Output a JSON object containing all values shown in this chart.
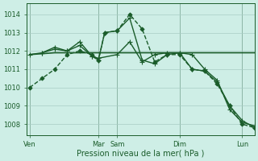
{
  "bg_color": "#ceeee6",
  "grid_color": "#a8ccc4",
  "line_color": "#1a5c2a",
  "xlabel": "Pression niveau de la mer( hPa )",
  "ylim": [
    1007.4,
    1014.6
  ],
  "yticks": [
    1008,
    1009,
    1010,
    1011,
    1012,
    1013,
    1014
  ],
  "xtick_labels": [
    "Ven",
    "Mar",
    "Sam",
    "Dim",
    "Lun"
  ],
  "xtick_pos": [
    0,
    11,
    14,
    24,
    34
  ],
  "vlines_dark": [
    0,
    11,
    14,
    24,
    34
  ],
  "xlim": [
    -0.5,
    36
  ],
  "lines": [
    {
      "x": [
        0,
        2,
        4,
        6,
        8,
        10,
        11,
        12,
        14,
        16,
        18,
        20,
        22,
        24,
        26,
        28,
        30,
        32,
        34,
        36
      ],
      "y": [
        1010.0,
        1010.5,
        1011.0,
        1011.8,
        1012.0,
        1011.8,
        1011.5,
        1013.0,
        1013.1,
        1014.0,
        1013.2,
        1011.4,
        1011.8,
        1011.8,
        1011.0,
        1010.9,
        1010.2,
        1009.0,
        1008.0,
        1007.8
      ],
      "marker": "D",
      "markersize": 2.5,
      "linestyle": "--",
      "linewidth": 1.0
    },
    {
      "x": [
        0,
        4,
        8,
        11,
        14,
        18,
        22,
        24,
        28,
        34,
        36
      ],
      "y": [
        1011.8,
        1011.9,
        1011.9,
        1011.9,
        1011.9,
        1011.9,
        1011.9,
        1011.9,
        1011.9,
        1011.9,
        1011.9
      ],
      "marker": null,
      "markersize": 0,
      "linestyle": "-",
      "linewidth": 1.2
    },
    {
      "x": [
        0,
        2,
        4,
        6,
        8,
        10,
        11,
        12,
        14,
        16,
        18,
        20,
        22,
        24,
        26,
        28,
        30,
        32,
        34,
        36
      ],
      "y": [
        1011.8,
        1011.9,
        1012.1,
        1012.0,
        1012.5,
        1011.7,
        1011.5,
        1013.0,
        1013.1,
        1013.8,
        1011.5,
        1011.3,
        1011.8,
        1011.9,
        1011.0,
        1010.9,
        1010.3,
        1009.0,
        1008.2,
        1007.8
      ],
      "marker": "+",
      "markersize": 4,
      "linestyle": "-",
      "linewidth": 1.0
    },
    {
      "x": [
        2,
        4,
        6,
        8,
        10,
        11,
        14,
        16,
        18,
        20,
        22,
        24,
        26,
        28,
        30,
        32,
        34,
        36
      ],
      "y": [
        1011.9,
        1012.2,
        1012.0,
        1012.3,
        1011.7,
        1011.6,
        1011.8,
        1012.5,
        1011.4,
        1011.8,
        1011.9,
        1011.9,
        1011.8,
        1011.0,
        1010.4,
        1008.8,
        1008.1,
        1007.9
      ],
      "marker": "+",
      "markersize": 4,
      "linestyle": "-",
      "linewidth": 1.0
    }
  ]
}
